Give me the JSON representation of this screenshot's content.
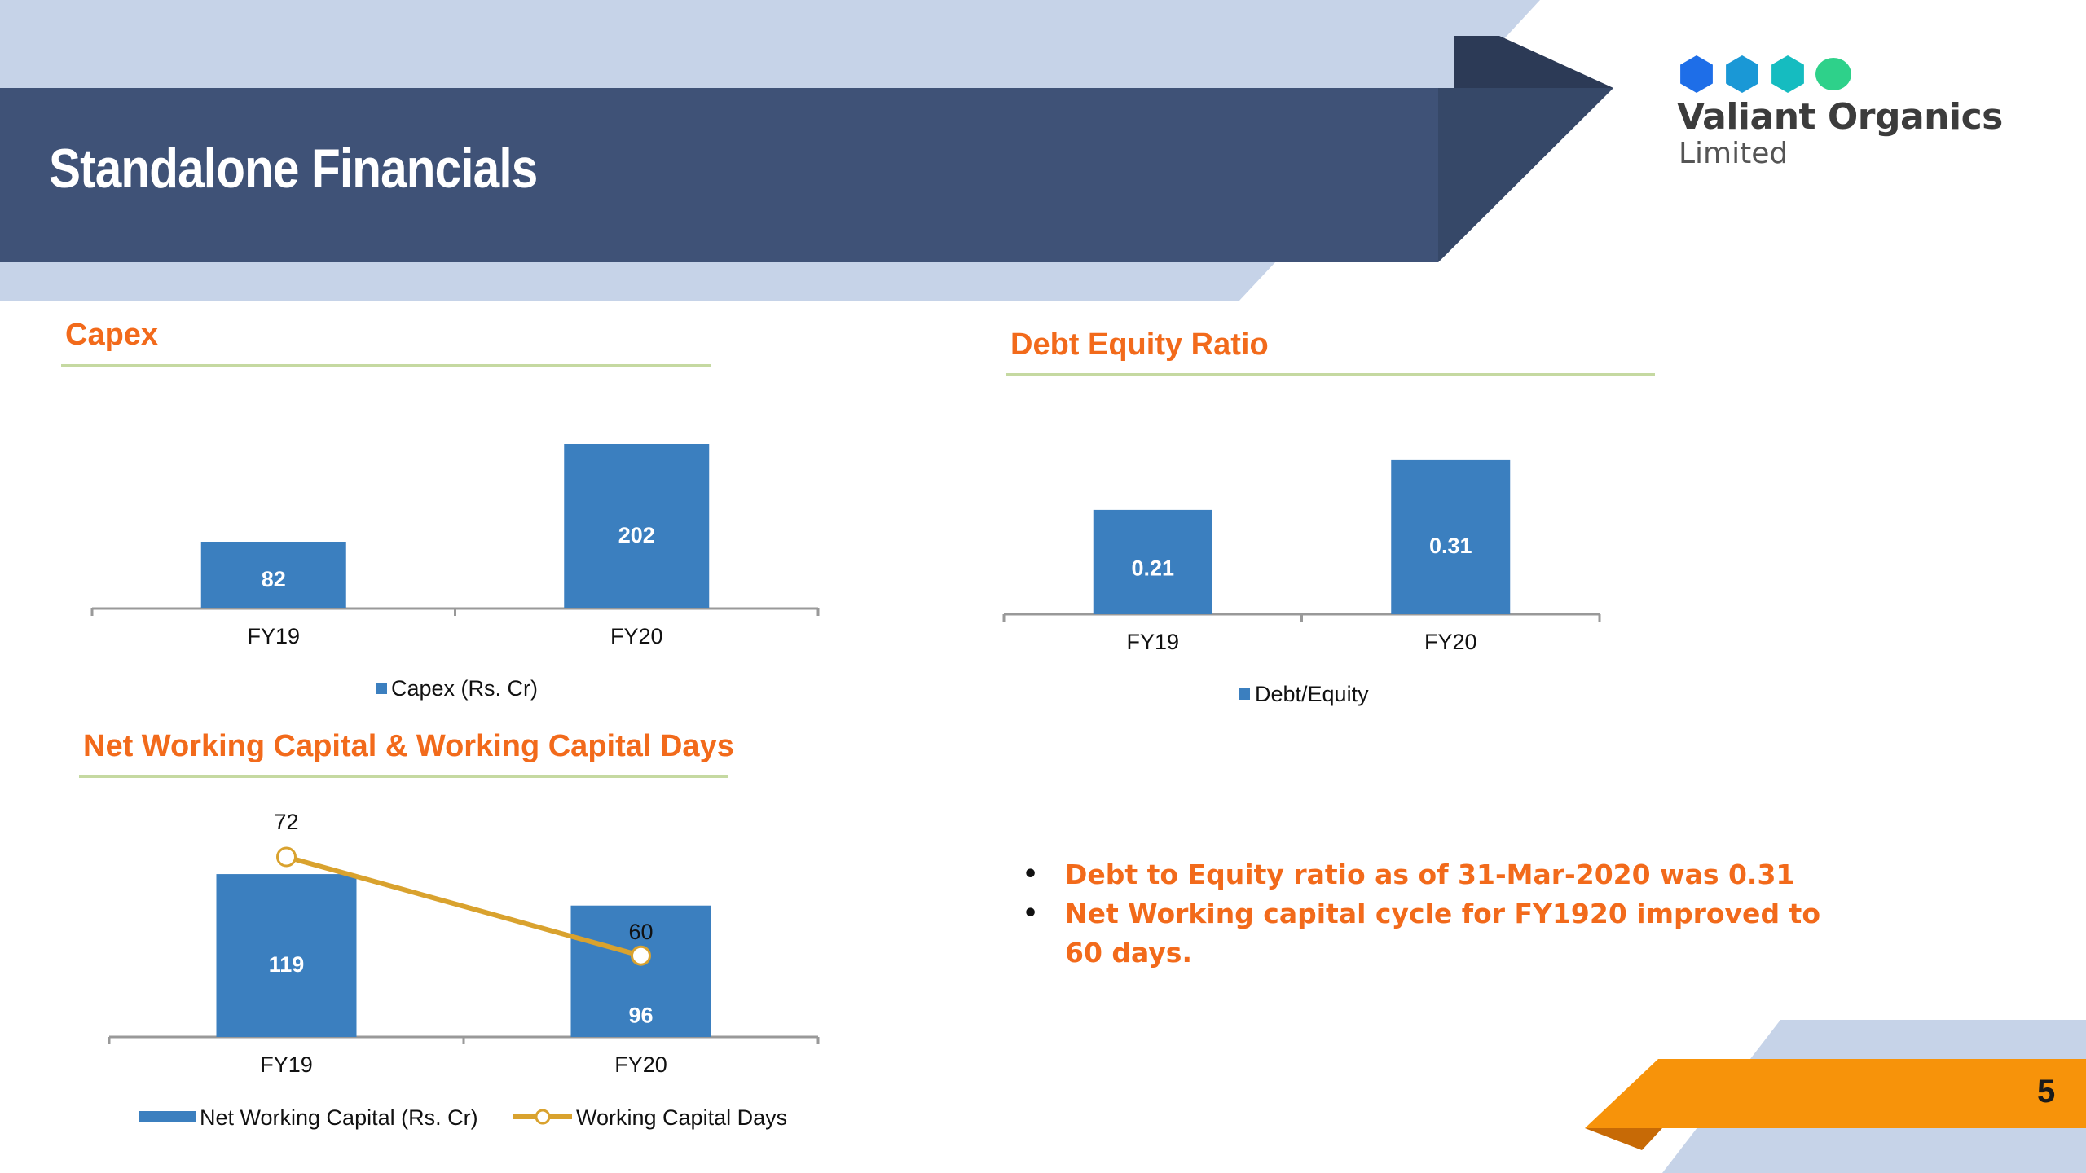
{
  "slide": {
    "title": "Standalone Financials",
    "page_number": "5"
  },
  "logo": {
    "name": "Valiant Organics",
    "sub": "Limited",
    "hex_colors": [
      "#1e6ee8",
      "#1a98d6",
      "#15bcc0",
      "#2ed18a"
    ]
  },
  "colors": {
    "bar": "#3b7fbf",
    "line": "#d9a22e",
    "accent_orange": "#f26a1b",
    "banner_dark": "#3f5277",
    "banner_light": "#c6d3e8"
  },
  "sections": {
    "capex": "Capex",
    "debt_equity": "Debt Equity Ratio",
    "nwc": "Net Working Capital & Working Capital Days"
  },
  "bullets": [
    "Debt to Equity ratio as of 31-Mar-2020 was 0.31",
    "Net Working capital cycle for FY1920 improved to 60 days."
  ],
  "chart_data": [
    {
      "id": "capex",
      "type": "bar",
      "categories": [
        "FY19",
        "FY20"
      ],
      "series": [
        {
          "name": "Capex (Rs. Cr)",
          "values": [
            82,
            202
          ]
        }
      ],
      "data_labels": [
        "82",
        "202"
      ],
      "legend": "bottom"
    },
    {
      "id": "debt_equity",
      "type": "bar",
      "categories": [
        "FY19",
        "FY20"
      ],
      "series": [
        {
          "name": "Debt/Equity",
          "values": [
            0.21,
            0.31
          ]
        }
      ],
      "data_labels": [
        "0.21",
        "0.31"
      ],
      "legend": "bottom"
    },
    {
      "id": "nwc",
      "type": "bar",
      "categories": [
        "FY19",
        "FY20"
      ],
      "series": [
        {
          "name": "Net Working Capital (Rs. Cr)",
          "type": "bar",
          "values": [
            119,
            96
          ],
          "data_labels": [
            "119",
            "96"
          ]
        },
        {
          "name": "Working Capital Days",
          "type": "line",
          "values": [
            72,
            60
          ],
          "data_labels": [
            "72",
            "60"
          ]
        }
      ],
      "legend": "bottom"
    }
  ]
}
